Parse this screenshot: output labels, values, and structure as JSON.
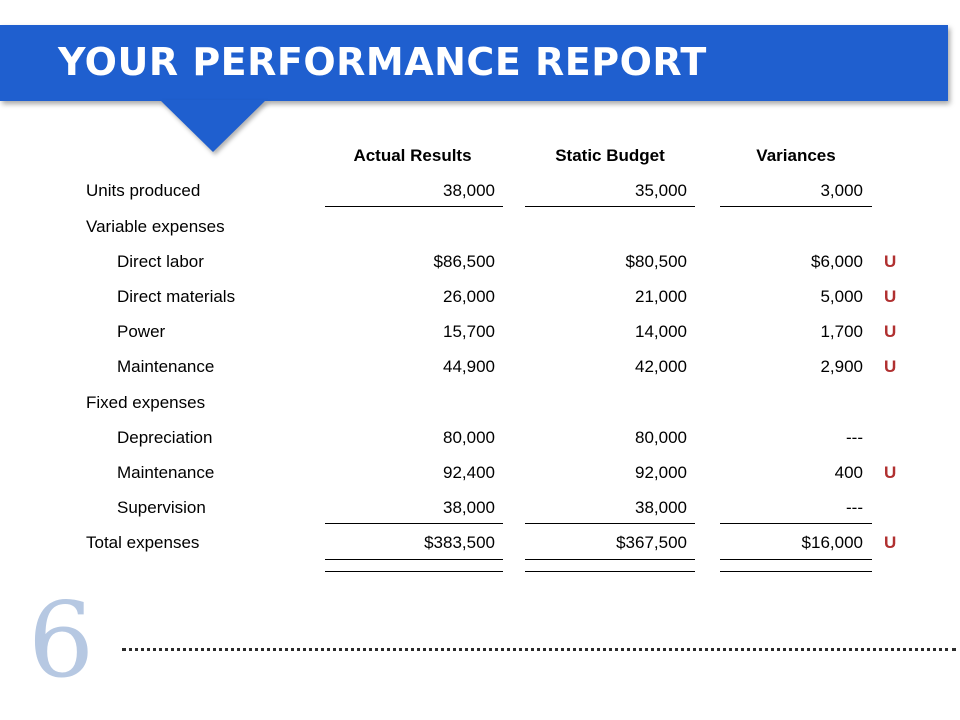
{
  "title": "YOUR PERFORMANCE REPORT",
  "columns": [
    "Actual Results",
    "Static Budget",
    "Variances"
  ],
  "rows": [
    {
      "label": "Units produced",
      "actual": "38,000",
      "budget": "35,000",
      "variance": "3,000",
      "flag": ""
    },
    {
      "label": "Variable expenses",
      "actual": "",
      "budget": "",
      "variance": "",
      "flag": ""
    },
    {
      "label": "Direct labor",
      "actual": "$86,500",
      "budget": "$80,500",
      "variance": "$6,000",
      "flag": "U"
    },
    {
      "label": "Direct materials",
      "actual": "26,000",
      "budget": "21,000",
      "variance": "5,000",
      "flag": "U"
    },
    {
      "label": "Power",
      "actual": "15,700",
      "budget": "14,000",
      "variance": "1,700",
      "flag": "U"
    },
    {
      "label": "Maintenance",
      "actual": "44,900",
      "budget": "42,000",
      "variance": "2,900",
      "flag": "U"
    },
    {
      "label": "Fixed expenses",
      "actual": "",
      "budget": "",
      "variance": "",
      "flag": ""
    },
    {
      "label": "Depreciation",
      "actual": "80,000",
      "budget": "80,000",
      "variance": "---",
      "flag": ""
    },
    {
      "label": "Maintenance",
      "actual": "92,400",
      "budget": "92,000",
      "variance": "400",
      "flag": "U"
    },
    {
      "label": "Supervision",
      "actual": "38,000",
      "budget": "38,000",
      "variance": "---",
      "flag": ""
    },
    {
      "label": "Total expenses",
      "actual": "$383,500",
      "budget": "$367,500",
      "variance": "$16,000",
      "flag": "U"
    }
  ],
  "slide_number": "6",
  "colors": {
    "banner": "#1f5fcf",
    "flag": "#b03030",
    "slide_number": "#b6c8e2"
  }
}
